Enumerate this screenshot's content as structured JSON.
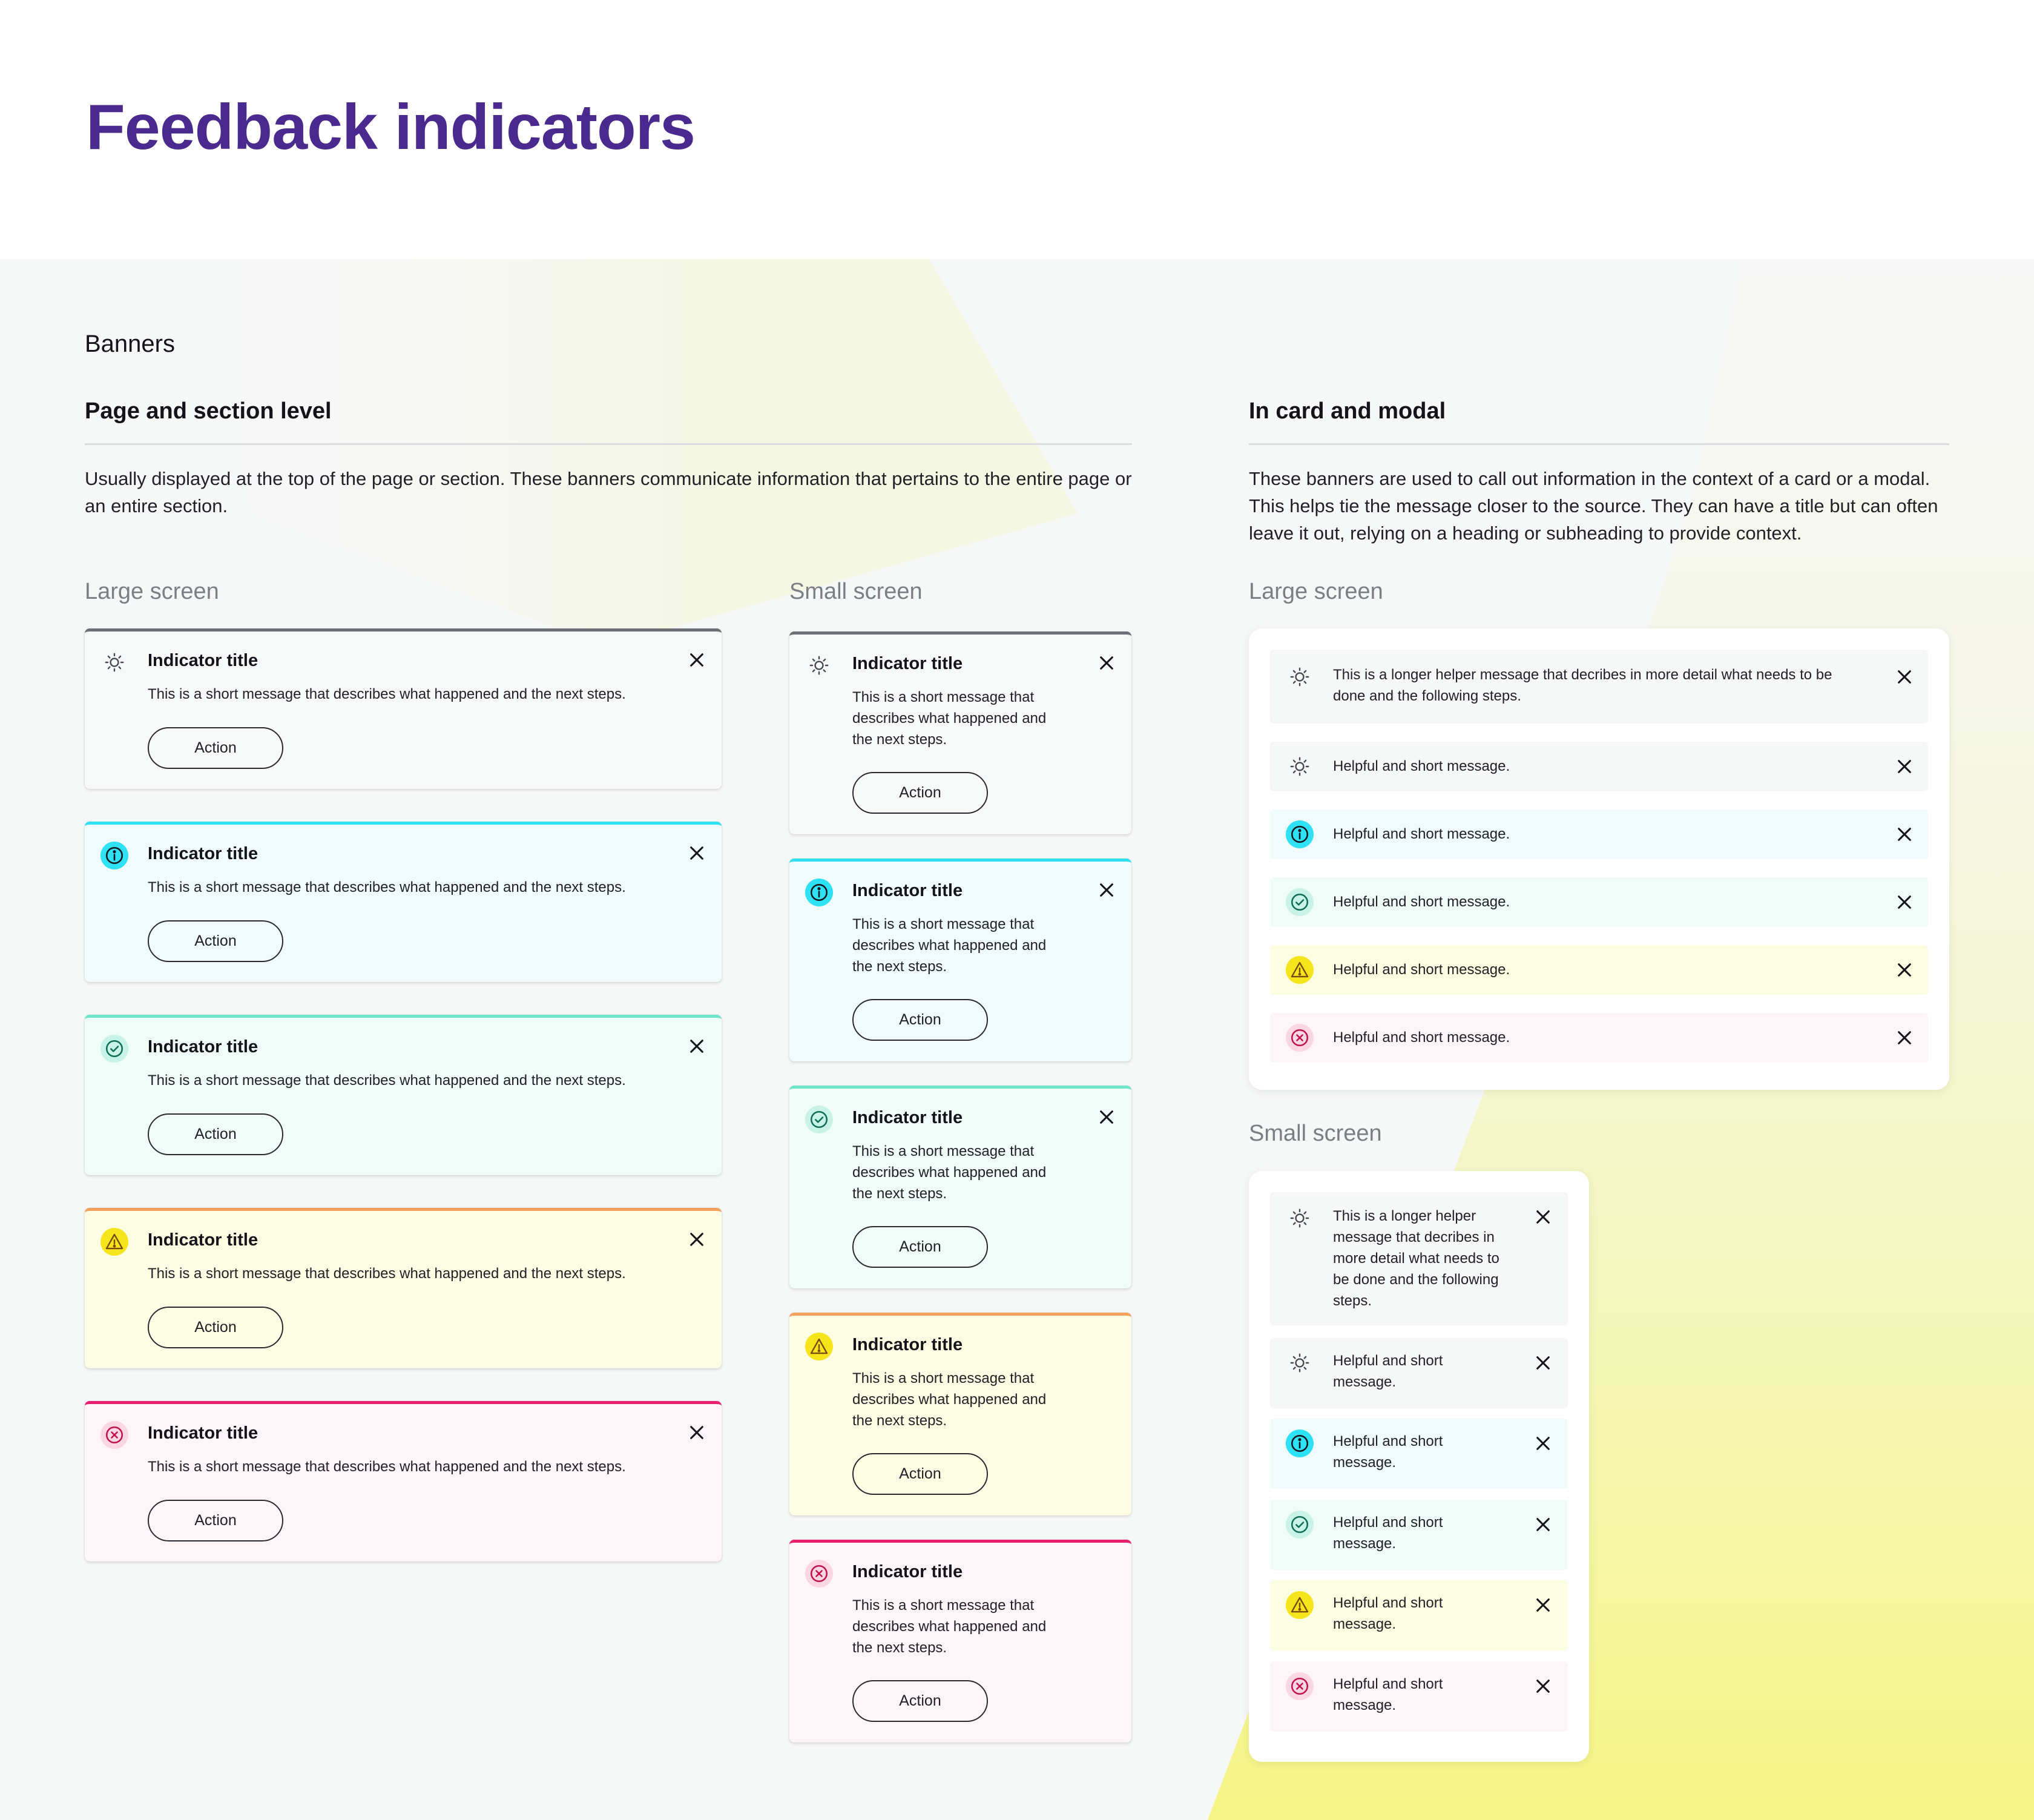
{
  "page": {
    "title": "Feedback indicators"
  },
  "section": {
    "title": "Banners",
    "page_level": {
      "title": "Page and section level",
      "description": "Usually displayed at the top of the page or section. These banners communicate information that pertains to the entire page or an entire section.",
      "large_label": "Large screen",
      "small_label": "Small screen"
    },
    "card_level": {
      "title": "In card and modal",
      "description": "These banners are used to call out information in the context of a card or a modal. This helps tie the message closer to the source. They can have a title but can often leave it out, relying on a heading or subheading to provide context.",
      "large_label": "Large screen",
      "small_label": "Small screen"
    }
  },
  "banner": {
    "title": "Indicator title",
    "message": "This is a short message that describes what happened and the next steps.",
    "action_label": "Action"
  },
  "card_banner": {
    "long_message": "This is a longer helper message that decribes in more detail what needs to be done and the following steps.",
    "short_message": "Helpful and short message."
  },
  "variants": [
    {
      "type": "neutral",
      "icon": "lightbulb-icon",
      "border": "#6d6e77",
      "background": "#f7f8f8"
    },
    {
      "type": "info",
      "icon": "info-icon",
      "border": "#2ee1f5",
      "background": "#effbfc"
    },
    {
      "type": "success",
      "icon": "check-circle-icon",
      "border": "#6fe6cc",
      "background": "#effcf8"
    },
    {
      "type": "warning",
      "icon": "warning-triangle-icon",
      "border": "#f5a05b",
      "background": "#fdfde4"
    },
    {
      "type": "error",
      "icon": "error-circle-icon",
      "border": "#e81f6e",
      "background": "#fef5f8"
    }
  ],
  "colors": {
    "title": "#4a2a8e",
    "highlight": "#f5f58a"
  }
}
